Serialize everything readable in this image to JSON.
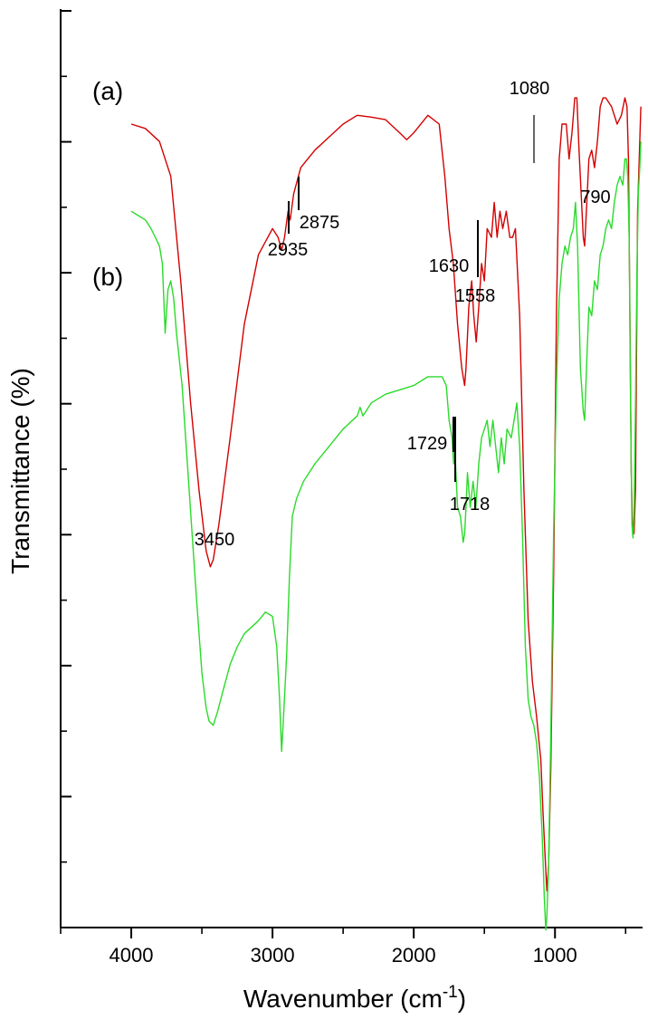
{
  "chart_data": {
    "type": "line",
    "xlabel": "Wavenumber (cm",
    "xlabel_sup": "-1",
    "xlabel_end": ")",
    "ylabel": "Transmittance (%)",
    "xlim": [
      4500,
      380
    ],
    "x_reversed": true,
    "x_ticks": [
      4000,
      3000,
      2000,
      1000
    ],
    "x_tick_labels": [
      "4000",
      "3000",
      "2000",
      "1000"
    ],
    "ylim": [
      0,
      100
    ],
    "y_tick_labels_shown": false,
    "grid": false,
    "series": [
      {
        "name": "(a)",
        "color": "#d40000",
        "points": [
          [
            4000,
            92
          ],
          [
            3900,
            91.5
          ],
          [
            3800,
            90
          ],
          [
            3720,
            86
          ],
          [
            3650,
            74
          ],
          [
            3580,
            60
          ],
          [
            3520,
            50
          ],
          [
            3470,
            43
          ],
          [
            3440,
            41.2
          ],
          [
            3420,
            42
          ],
          [
            3380,
            46
          ],
          [
            3300,
            56
          ],
          [
            3200,
            69
          ],
          [
            3100,
            77
          ],
          [
            3000,
            80
          ],
          [
            2960,
            79
          ],
          [
            2935,
            77.5
          ],
          [
            2915,
            79
          ],
          [
            2890,
            82
          ],
          [
            2875,
            81
          ],
          [
            2850,
            84
          ],
          [
            2800,
            87
          ],
          [
            2700,
            89
          ],
          [
            2600,
            90.5
          ],
          [
            2500,
            92
          ],
          [
            2400,
            93
          ],
          [
            2300,
            92.8
          ],
          [
            2200,
            92.5
          ],
          [
            2100,
            91
          ],
          [
            2050,
            90.2
          ],
          [
            2000,
            91
          ],
          [
            1900,
            93
          ],
          [
            1820,
            92
          ],
          [
            1780,
            86
          ],
          [
            1750,
            80
          ],
          [
            1720,
            76
          ],
          [
            1690,
            69
          ],
          [
            1660,
            64
          ],
          [
            1640,
            62
          ],
          [
            1630,
            64
          ],
          [
            1610,
            71
          ],
          [
            1590,
            74
          ],
          [
            1575,
            70
          ],
          [
            1558,
            67
          ],
          [
            1540,
            71
          ],
          [
            1520,
            76
          ],
          [
            1500,
            74
          ],
          [
            1480,
            80
          ],
          [
            1450,
            79
          ],
          [
            1430,
            83
          ],
          [
            1410,
            79
          ],
          [
            1390,
            82
          ],
          [
            1370,
            80
          ],
          [
            1345,
            82
          ],
          [
            1320,
            79
          ],
          [
            1300,
            79
          ],
          [
            1280,
            80
          ],
          [
            1250,
            70
          ],
          [
            1220,
            50
          ],
          [
            1190,
            35
          ],
          [
            1160,
            28
          ],
          [
            1130,
            24
          ],
          [
            1100,
            19
          ],
          [
            1085,
            13
          ],
          [
            1070,
            8
          ],
          [
            1058,
            4
          ],
          [
            1045,
            7
          ],
          [
            1030,
            18
          ],
          [
            1010,
            40
          ],
          [
            990,
            70
          ],
          [
            970,
            88
          ],
          [
            950,
            92
          ],
          [
            920,
            92
          ],
          [
            900,
            88
          ],
          [
            880,
            91
          ],
          [
            860,
            95
          ],
          [
            845,
            95
          ],
          [
            830,
            89
          ],
          [
            800,
            79
          ],
          [
            790,
            78
          ],
          [
            775,
            83
          ],
          [
            760,
            88
          ],
          [
            740,
            89
          ],
          [
            720,
            87
          ],
          [
            700,
            90
          ],
          [
            680,
            94
          ],
          [
            660,
            95
          ],
          [
            640,
            95
          ],
          [
            600,
            94
          ],
          [
            560,
            92
          ],
          [
            530,
            93
          ],
          [
            505,
            95
          ],
          [
            490,
            94
          ],
          [
            480,
            88
          ],
          [
            470,
            70
          ],
          [
            460,
            52
          ],
          [
            450,
            45
          ],
          [
            440,
            45
          ],
          [
            430,
            50
          ],
          [
            415,
            82
          ],
          [
            400,
            90
          ],
          [
            392,
            94
          ]
        ]
      },
      {
        "name": "(b)",
        "color": "#2adb2a",
        "points": [
          [
            4000,
            82
          ],
          [
            3950,
            81.5
          ],
          [
            3900,
            81
          ],
          [
            3860,
            80
          ],
          [
            3830,
            79
          ],
          [
            3800,
            78
          ],
          [
            3780,
            76
          ],
          [
            3760,
            68
          ],
          [
            3740,
            73
          ],
          [
            3720,
            74
          ],
          [
            3700,
            72
          ],
          [
            3680,
            68
          ],
          [
            3640,
            62
          ],
          [
            3590,
            50
          ],
          [
            3540,
            38
          ],
          [
            3500,
            29
          ],
          [
            3470,
            25
          ],
          [
            3450,
            23.5
          ],
          [
            3420,
            23
          ],
          [
            3390,
            24.5
          ],
          [
            3350,
            27
          ],
          [
            3300,
            30
          ],
          [
            3250,
            32
          ],
          [
            3200,
            33.5
          ],
          [
            3100,
            35
          ],
          [
            3050,
            36
          ],
          [
            3000,
            35.5
          ],
          [
            2970,
            32
          ],
          [
            2950,
            26
          ],
          [
            2935,
            20
          ],
          [
            2925,
            23
          ],
          [
            2900,
            31
          ],
          [
            2880,
            40
          ],
          [
            2860,
            47
          ],
          [
            2830,
            49
          ],
          [
            2780,
            51
          ],
          [
            2700,
            53
          ],
          [
            2600,
            55
          ],
          [
            2500,
            57
          ],
          [
            2400,
            58.5
          ],
          [
            2380,
            59.5
          ],
          [
            2360,
            58.5
          ],
          [
            2300,
            60
          ],
          [
            2200,
            61
          ],
          [
            2100,
            61.5
          ],
          [
            2000,
            62
          ],
          [
            1900,
            63
          ],
          [
            1800,
            63
          ],
          [
            1770,
            62
          ],
          [
            1750,
            58
          ],
          [
            1729,
            56
          ],
          [
            1718,
            53
          ],
          [
            1710,
            55
          ],
          [
            1690,
            48
          ],
          [
            1670,
            47
          ],
          [
            1650,
            44
          ],
          [
            1640,
            45
          ],
          [
            1630,
            48
          ],
          [
            1620,
            52
          ],
          [
            1600,
            48
          ],
          [
            1580,
            51
          ],
          [
            1560,
            48
          ],
          [
            1540,
            53
          ],
          [
            1520,
            56
          ],
          [
            1500,
            57
          ],
          [
            1480,
            58
          ],
          [
            1460,
            55
          ],
          [
            1440,
            58
          ],
          [
            1420,
            55
          ],
          [
            1400,
            52
          ],
          [
            1380,
            56
          ],
          [
            1360,
            53
          ],
          [
            1340,
            57
          ],
          [
            1310,
            56
          ],
          [
            1290,
            58
          ],
          [
            1270,
            60
          ],
          [
            1250,
            55
          ],
          [
            1230,
            45
          ],
          [
            1210,
            32
          ],
          [
            1190,
            26
          ],
          [
            1170,
            24
          ],
          [
            1150,
            23
          ],
          [
            1130,
            21
          ],
          [
            1110,
            17
          ],
          [
            1090,
            10
          ],
          [
            1075,
            3
          ],
          [
            1065,
            -0.5
          ],
          [
            1058,
            1
          ],
          [
            1045,
            7
          ],
          [
            1030,
            22
          ],
          [
            1010,
            45
          ],
          [
            990,
            62
          ],
          [
            970,
            72
          ],
          [
            950,
            76
          ],
          [
            930,
            78
          ],
          [
            910,
            77
          ],
          [
            890,
            79
          ],
          [
            870,
            80
          ],
          [
            855,
            83
          ],
          [
            840,
            78
          ],
          [
            820,
            64
          ],
          [
            800,
            59
          ],
          [
            790,
            58
          ],
          [
            775,
            65
          ],
          [
            760,
            71
          ],
          [
            740,
            70
          ],
          [
            720,
            74
          ],
          [
            700,
            73
          ],
          [
            680,
            77
          ],
          [
            660,
            78
          ],
          [
            640,
            80
          ],
          [
            620,
            81
          ],
          [
            600,
            80
          ],
          [
            580,
            83
          ],
          [
            560,
            85
          ],
          [
            540,
            86
          ],
          [
            520,
            85
          ],
          [
            505,
            88
          ],
          [
            495,
            88
          ],
          [
            485,
            86
          ],
          [
            475,
            79
          ],
          [
            465,
            60
          ],
          [
            455,
            46
          ],
          [
            448,
            44.5
          ],
          [
            440,
            47
          ],
          [
            430,
            60
          ],
          [
            420,
            75
          ],
          [
            410,
            84
          ],
          [
            400,
            87
          ],
          [
            392,
            90
          ]
        ]
      }
    ],
    "annotations": [
      {
        "text": "2935"
      },
      {
        "text": "2875"
      },
      {
        "text": "1630"
      },
      {
        "text": "1558"
      },
      {
        "text": "1080"
      },
      {
        "text": "790"
      },
      {
        "text": "3450"
      },
      {
        "text": "1729"
      },
      {
        "text": "1718"
      }
    ]
  }
}
